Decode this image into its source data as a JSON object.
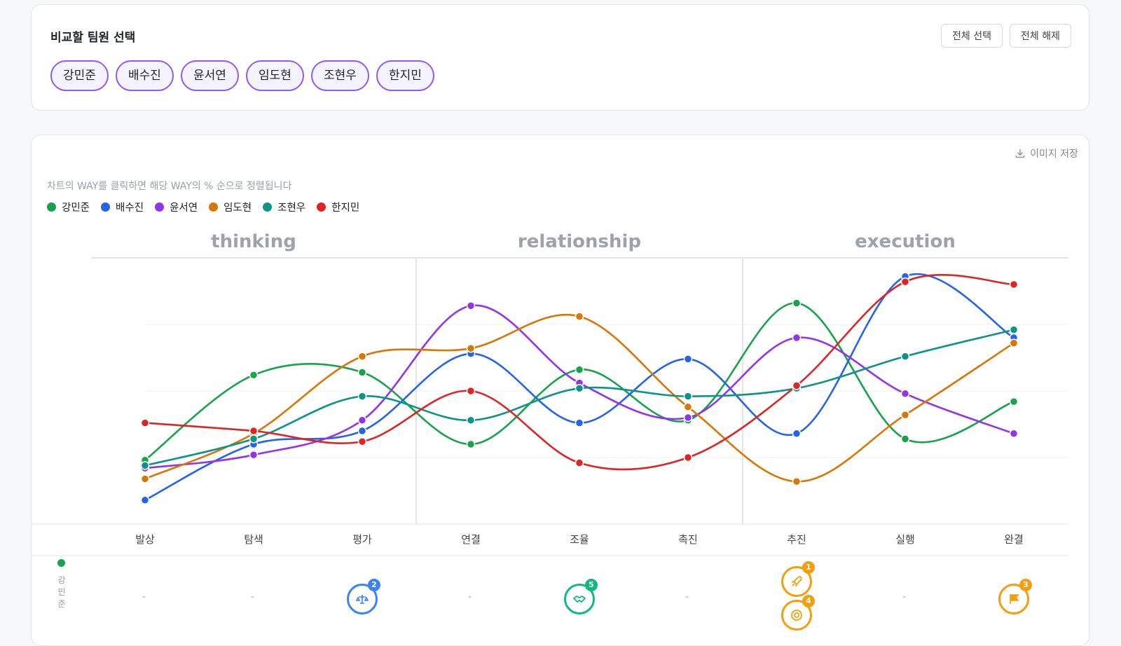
{
  "selector": {
    "title": "비교할 팀원 선택",
    "select_all": "전체 선택",
    "clear_all": "전체 해제",
    "members": [
      "강민준",
      "배수진",
      "윤서연",
      "임도현",
      "조현우",
      "한지민"
    ]
  },
  "chart_panel": {
    "save_image": "이미지 저장",
    "hint": "차트의 WAY를 클릭하면 해당 WAY의 % 순으로 정렬됩니다"
  },
  "colors": {
    "강민준": "#16a34a",
    "배수진": "#2563eb",
    "윤서연": "#9333ea",
    "임도현": "#d97706",
    "조현우": "#0d9488",
    "한지민": "#dc2626"
  },
  "chart_data": {
    "type": "line",
    "groups": [
      {
        "name": "thinking",
        "categories": [
          "발상",
          "탐색",
          "평가"
        ]
      },
      {
        "name": "relationship",
        "categories": [
          "연결",
          "조율",
          "촉진"
        ]
      },
      {
        "name": "execution",
        "categories": [
          "추진",
          "실행",
          "완결"
        ]
      }
    ],
    "categories": [
      "발상",
      "탐색",
      "평가",
      "연결",
      "조율",
      "촉진",
      "추진",
      "실행",
      "완결"
    ],
    "ylim": [
      0,
      100
    ],
    "grid": true,
    "legend": "top-left",
    "series": [
      {
        "name": "강민준",
        "values": [
          24,
          56,
          57,
          30,
          58,
          39,
          83,
          32,
          46
        ]
      },
      {
        "name": "배수진",
        "values": [
          9,
          30,
          35,
          64,
          38,
          62,
          34,
          93,
          70
        ]
      },
      {
        "name": "윤서연",
        "values": [
          21,
          26,
          39,
          82,
          53,
          40,
          70,
          49,
          34
        ]
      },
      {
        "name": "임도현",
        "values": [
          17,
          34,
          63,
          66,
          78,
          44,
          16,
          41,
          68
        ]
      },
      {
        "name": "조현우",
        "values": [
          22,
          32,
          48,
          39,
          51,
          48,
          51,
          63,
          73
        ]
      },
      {
        "name": "한지민",
        "values": [
          38,
          35,
          31,
          50,
          23,
          25,
          52,
          91,
          90
        ]
      }
    ]
  },
  "ranking_row": {
    "member": "강민준",
    "member_chars": [
      "강",
      "민",
      "준"
    ],
    "empty_mark": "-",
    "badges": [
      {
        "category": "평가",
        "rank": "2",
        "icon": "scale-icon",
        "color": "#3b82f6"
      },
      {
        "category": "조율",
        "rank": "5",
        "icon": "handshake-icon",
        "color": "#10b981"
      },
      {
        "category": "추진",
        "rank": "1",
        "icon": "rocket-icon",
        "color": "#f59e0b"
      },
      {
        "category": "추진",
        "rank": "4",
        "icon": "target-icon",
        "color": "#f59e0b"
      },
      {
        "category": "완결",
        "rank": "3",
        "icon": "flag-icon",
        "color": "#f59e0b"
      }
    ]
  }
}
